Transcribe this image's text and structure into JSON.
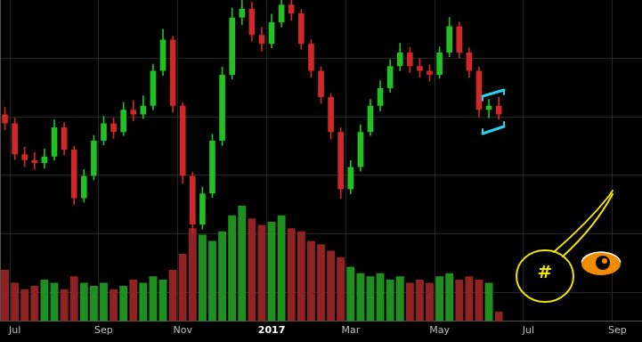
{
  "chart_data": {
    "type": "candlestick",
    "categories": [
      null,
      "Jul",
      null,
      null,
      null,
      null,
      null,
      null,
      null,
      null,
      "Sep",
      null,
      null,
      null,
      null,
      null,
      null,
      null,
      "Nov",
      null,
      null,
      null,
      null,
      null,
      null,
      null,
      null,
      "2017",
      null,
      null,
      null,
      null,
      null,
      null,
      null,
      "Mar",
      null,
      null,
      null,
      null,
      null,
      null,
      null,
      null,
      "May",
      null,
      null,
      null,
      null,
      null,
      null,
      null,
      null,
      "Jul",
      null,
      null,
      null,
      null,
      null,
      null,
      null,
      null,
      "Sep",
      null,
      null
    ],
    "series": [
      {
        "type": "candlestick",
        "open": [
          40.4,
          38.9,
          33.6,
          32.6,
          32.1,
          33.2,
          38.2,
          34.4,
          26.1,
          29.9,
          35.9,
          38.9,
          37.4,
          41.2,
          40.4,
          41.9,
          47.9,
          53.2,
          41.9,
          29.9,
          21.6,
          26.9,
          35.9,
          47.2,
          57.0,
          58.5,
          54.0,
          52.5,
          56.2,
          59.2,
          57.7,
          52.5,
          47.9,
          43.4,
          37.4,
          27.6,
          31.4,
          37.4,
          41.9,
          44.9,
          48.7,
          51.0,
          48.7,
          47.9,
          47.2,
          51.0,
          55.5,
          51.0,
          47.9,
          41.2,
          41.9,
          null,
          null,
          null,
          null,
          null,
          null,
          null,
          null,
          null,
          null,
          null,
          null,
          null,
          null
        ],
        "high": [
          41.6,
          39.8,
          34.8,
          33.9,
          34.5,
          39.5,
          39.0,
          35.0,
          31.0,
          36.8,
          40.1,
          39.8,
          42.5,
          42.8,
          43.6,
          49.0,
          55.0,
          53.8,
          42.4,
          30.5,
          28.0,
          37.0,
          48.5,
          58.6,
          61.0,
          59.6,
          55.3,
          57.6,
          61.5,
          61.0,
          58.4,
          53.2,
          48.6,
          44.0,
          38.1,
          32.5,
          38.6,
          43.0,
          46.2,
          49.8,
          52.6,
          51.9,
          50.0,
          48.9,
          52.0,
          57.0,
          56.2,
          51.8,
          48.5,
          43.0,
          43.4,
          null,
          null,
          null,
          null,
          null,
          null,
          null,
          null,
          null,
          null,
          null,
          null,
          null,
          null
        ],
        "low": [
          37.8,
          32.7,
          31.5,
          31.0,
          31.2,
          32.6,
          33.5,
          25.0,
          25.4,
          29.2,
          35.2,
          36.3,
          36.8,
          39.3,
          39.7,
          41.2,
          47.1,
          40.8,
          28.6,
          20.1,
          20.8,
          26.2,
          35.1,
          46.5,
          55.8,
          53.0,
          51.2,
          51.8,
          55.4,
          56.5,
          51.6,
          46.8,
          42.3,
          36.2,
          26.0,
          26.8,
          30.7,
          36.8,
          41.0,
          44.2,
          47.9,
          47.6,
          46.8,
          46.1,
          46.6,
          50.3,
          50.1,
          46.8,
          40.0,
          39.8,
          39.6,
          null,
          null,
          null,
          null,
          null,
          null,
          null,
          null,
          null,
          null,
          null,
          null,
          null,
          null
        ],
        "close": [
          38.9,
          33.6,
          32.6,
          32.1,
          33.2,
          38.2,
          34.4,
          26.1,
          29.9,
          35.9,
          38.9,
          37.4,
          41.2,
          40.4,
          41.9,
          47.9,
          53.2,
          41.9,
          29.9,
          21.6,
          26.9,
          35.9,
          47.2,
          57.0,
          58.5,
          54.0,
          52.5,
          56.2,
          59.2,
          57.7,
          52.5,
          47.9,
          43.4,
          37.4,
          27.6,
          31.4,
          37.4,
          41.9,
          44.9,
          48.7,
          51.0,
          48.7,
          47.9,
          47.2,
          51.0,
          55.5,
          51.0,
          47.9,
          41.2,
          41.9,
          40.4,
          null,
          null,
          null,
          null,
          null,
          null,
          null,
          null,
          null,
          null,
          null,
          null,
          null,
          null
        ],
        "colors": [
          "#d02828",
          "#d02828",
          "#d02828",
          "#d02828",
          "#22c022",
          "#22c022",
          "#d02828",
          "#d02828",
          "#22c022",
          "#22c022",
          "#22c022",
          "#d02828",
          "#22c022",
          "#d02828",
          "#22c022",
          "#22c022",
          "#22c022",
          "#d02828",
          "#d02828",
          "#d02828",
          "#22c022",
          "#22c022",
          "#22c022",
          "#22c022",
          "#22c022",
          "#d02828",
          "#d02828",
          "#22c022",
          "#22c022",
          "#d02828",
          "#d02828",
          "#d02828",
          "#d02828",
          "#d02828",
          "#d02828",
          "#22c022",
          "#22c022",
          "#22c022",
          "#22c022",
          "#22c022",
          "#22c022",
          "#d02828",
          "#d02828",
          "#d02828",
          "#22c022",
          "#22c022",
          "#d02828",
          "#d02828",
          "#d02828",
          "#22c022",
          "#d02828",
          null,
          null,
          null,
          null,
          null,
          null,
          null,
          null,
          null,
          null,
          null,
          null,
          null,
          null
        ]
      },
      {
        "type": "bar",
        "axis": "y2",
        "values": [
          16,
          12,
          10,
          11,
          13,
          12,
          10,
          14,
          12,
          11,
          12,
          10,
          11,
          13,
          12,
          14,
          13,
          16,
          21,
          29,
          27,
          25,
          28,
          33,
          36,
          32,
          30,
          31,
          33,
          29,
          28,
          25,
          24,
          22,
          20,
          17,
          15,
          14,
          15,
          13,
          14,
          12,
          13,
          12,
          14,
          15,
          13,
          14,
          13,
          12,
          3,
          null,
          null,
          null,
          null,
          null,
          null,
          null,
          null,
          null,
          null,
          null,
          null,
          null,
          null
        ],
        "colors": [
          "#8f2323",
          "#8f2323",
          "#8f2323",
          "#8f2323",
          "#1f8f1f",
          "#1f8f1f",
          "#8f2323",
          "#8f2323",
          "#1f8f1f",
          "#1f8f1f",
          "#1f8f1f",
          "#8f2323",
          "#1f8f1f",
          "#8f2323",
          "#1f8f1f",
          "#1f8f1f",
          "#1f8f1f",
          "#8f2323",
          "#8f2323",
          "#8f2323",
          "#1f8f1f",
          "#1f8f1f",
          "#1f8f1f",
          "#1f8f1f",
          "#1f8f1f",
          "#8f2323",
          "#8f2323",
          "#1f8f1f",
          "#1f8f1f",
          "#8f2323",
          "#8f2323",
          "#8f2323",
          "#8f2323",
          "#8f2323",
          "#8f2323",
          "#1f8f1f",
          "#1f8f1f",
          "#1f8f1f",
          "#1f8f1f",
          "#1f8f1f",
          "#1f8f1f",
          "#8f2323",
          "#8f2323",
          "#8f2323",
          "#1f8f1f",
          "#1f8f1f",
          "#8f2323",
          "#8f2323",
          "#8f2323",
          "#1f8f1f",
          "#8f2323",
          null,
          null,
          null,
          null,
          null,
          null,
          null,
          null,
          null,
          null,
          null,
          null,
          null,
          null
        ]
      }
    ],
    "ylim": [
      5,
      60
    ],
    "yticks": [
      10,
      20,
      30,
      40,
      50
    ],
    "y2lim": [
      0,
      100
    ],
    "grid": true,
    "tick_labels": "x",
    "annotations": [
      "#"
    ]
  }
}
